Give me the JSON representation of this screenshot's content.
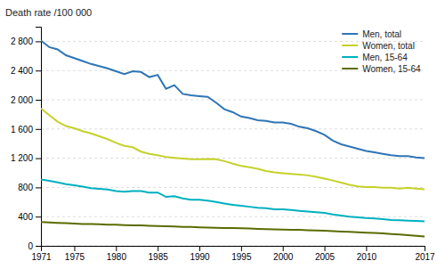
{
  "chart_data": {
    "type": "line",
    "ylabel": "Death rate /100 000",
    "x": [
      1971,
      1972,
      1973,
      1974,
      1975,
      1976,
      1977,
      1978,
      1979,
      1980,
      1981,
      1982,
      1983,
      1984,
      1985,
      1986,
      1987,
      1988,
      1989,
      1990,
      1991,
      1992,
      1993,
      1994,
      1995,
      1996,
      1997,
      1998,
      1999,
      2000,
      2001,
      2002,
      2003,
      2004,
      2005,
      2006,
      2007,
      2008,
      2009,
      2010,
      2011,
      2012,
      2013,
      2014,
      2015,
      2016,
      2017
    ],
    "series": [
      {
        "name": "Men, total",
        "color": "#2E75B6",
        "values": [
          2810,
          2720,
          2690,
          2610,
          2570,
          2530,
          2490,
          2460,
          2430,
          2390,
          2350,
          2390,
          2380,
          2310,
          2340,
          2150,
          2200,
          2080,
          2060,
          2050,
          2040,
          1960,
          1870,
          1830,
          1770,
          1750,
          1720,
          1710,
          1690,
          1690,
          1670,
          1630,
          1610,
          1570,
          1520,
          1440,
          1390,
          1360,
          1330,
          1300,
          1280,
          1260,
          1240,
          1230,
          1230,
          1210,
          1200
        ]
      },
      {
        "name": "Women, total",
        "color": "#C5D12A",
        "values": [
          1880,
          1790,
          1700,
          1640,
          1610,
          1570,
          1540,
          1500,
          1460,
          1410,
          1370,
          1350,
          1290,
          1260,
          1240,
          1215,
          1205,
          1195,
          1185,
          1185,
          1190,
          1185,
          1160,
          1125,
          1095,
          1075,
          1055,
          1025,
          1005,
          995,
          985,
          975,
          965,
          945,
          920,
          895,
          865,
          835,
          815,
          805,
          805,
          795,
          795,
          785,
          795,
          785,
          775
        ]
      },
      {
        "name": "Men, 15-64",
        "color": "#00B0C0",
        "values": [
          910,
          890,
          870,
          845,
          830,
          810,
          790,
          780,
          770,
          750,
          740,
          750,
          750,
          730,
          730,
          670,
          680,
          650,
          630,
          630,
          620,
          600,
          580,
          560,
          550,
          535,
          520,
          515,
          500,
          500,
          490,
          480,
          470,
          460,
          450,
          430,
          415,
          400,
          390,
          380,
          375,
          365,
          355,
          350,
          345,
          340,
          335
        ]
      },
      {
        "name": "Women, 15-64",
        "color": "#5C6B00",
        "values": [
          325,
          320,
          315,
          310,
          305,
          300,
          300,
          295,
          290,
          290,
          285,
          280,
          280,
          275,
          272,
          268,
          265,
          260,
          258,
          254,
          250,
          248,
          245,
          243,
          240,
          237,
          233,
          230,
          226,
          223,
          220,
          218,
          214,
          210,
          206,
          201,
          196,
          191,
          186,
          181,
          176,
          171,
          162,
          154,
          147,
          138,
          128
        ]
      }
    ],
    "xlim": [
      1971,
      2017
    ],
    "xticks": [
      1971,
      1975,
      1980,
      1985,
      1990,
      1995,
      2000,
      2005,
      2010,
      2017
    ],
    "ylim": [
      0,
      3000
    ],
    "yticks": [
      0,
      400,
      800,
      {
        "value": 1200,
        "label": "1 200"
      },
      {
        "value": 1600,
        "label": "1 600"
      },
      {
        "value": 2000,
        "label": "2 000"
      },
      {
        "value": 2400,
        "label": "2 400"
      },
      {
        "value": 2800,
        "label": "2 800"
      }
    ],
    "grid": true,
    "legend": "upper right"
  }
}
